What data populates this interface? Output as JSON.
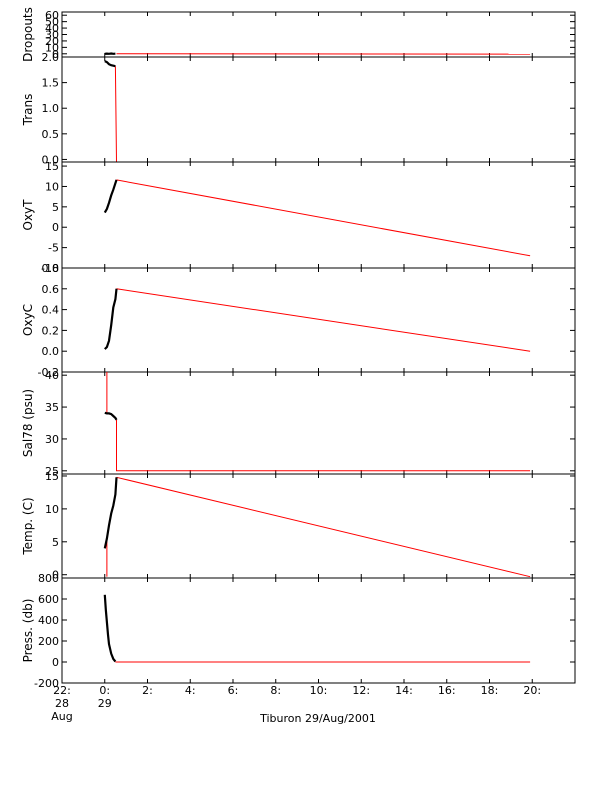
{
  "colors": {
    "axis": "#000000",
    "trace": "#000000",
    "line": "#ff0000",
    "background": "#ffffff"
  },
  "chart_data": {
    "type": "line",
    "caption": "Tiburon 29/Aug/2001",
    "x_ticks": [
      {
        "t": -2,
        "line1": "22:",
        "line2": "28",
        "line3": "Aug"
      },
      {
        "t": 0,
        "line1": "0:",
        "line2": "29",
        "line3": ""
      },
      {
        "t": 2,
        "line1": "2:",
        "line2": "",
        "line3": ""
      },
      {
        "t": 4,
        "line1": "4:",
        "line2": "",
        "line3": ""
      },
      {
        "t": 6,
        "line1": "6:",
        "line2": "",
        "line3": ""
      },
      {
        "t": 8,
        "line1": "8:",
        "line2": "",
        "line3": ""
      },
      {
        "t": 10,
        "line1": "10:",
        "line2": "",
        "line3": ""
      },
      {
        "t": 12,
        "line1": "12:",
        "line2": "",
        "line3": ""
      },
      {
        "t": 14,
        "line1": "14:",
        "line2": "",
        "line3": ""
      },
      {
        "t": 16,
        "line1": "16:",
        "line2": "",
        "line3": ""
      },
      {
        "t": 18,
        "line1": "18:",
        "line2": "",
        "line3": ""
      },
      {
        "t": 20,
        "line1": "20:",
        "line2": "",
        "line3": ""
      }
    ],
    "x_range": [
      -2,
      22
    ],
    "panels": [
      {
        "name": "dropouts",
        "ylabel": "Dropouts",
        "ylim": [
          -5,
          65
        ],
        "yticks": [
          0,
          10,
          20,
          30,
          40,
          50,
          60
        ],
        "measured": {
          "x": [
            0.0,
            0.1,
            0.2,
            0.3,
            0.4,
            0.5
          ],
          "y": [
            0,
            0.3,
            0,
            0.4,
            0,
            0.2
          ]
        },
        "line": {
          "x": [
            0.55,
            19.9
          ],
          "y": [
            0,
            -0.5
          ]
        },
        "spike": null
      },
      {
        "name": "trans",
        "ylabel": "Trans",
        "ylim": [
          -0.05,
          2.0
        ],
        "yticks": [
          0.0,
          0.5,
          1.0,
          1.5,
          2.0
        ],
        "measured": {
          "x": [
            0.0,
            0.1,
            0.2,
            0.3,
            0.4,
            0.5
          ],
          "y": [
            1.92,
            1.9,
            1.86,
            1.84,
            1.83,
            1.82
          ]
        },
        "line": {
          "x": [
            0.5,
            0.55,
            19.9
          ],
          "y": [
            1.82,
            -0.05,
            -0.05
          ]
        },
        "spike": null
      },
      {
        "name": "oxyt",
        "ylabel": "OxyT",
        "ylim": [
          -10,
          16
        ],
        "yticks": [
          -10,
          -5,
          0,
          5,
          10,
          15
        ],
        "measured": {
          "x": [
            0.0,
            0.1,
            0.2,
            0.3,
            0.4,
            0.5,
            0.55
          ],
          "y": [
            3.6,
            4.5,
            6.0,
            7.8,
            9.2,
            10.8,
            11.6
          ]
        },
        "line": {
          "x": [
            0.55,
            19.9
          ],
          "y": [
            11.6,
            -7.0
          ]
        },
        "spike": null
      },
      {
        "name": "oxyc",
        "ylabel": "OxyC",
        "ylim": [
          -0.2,
          0.8
        ],
        "yticks": [
          -0.2,
          0.0,
          0.2,
          0.4,
          0.6,
          0.8
        ],
        "measured": {
          "x": [
            0.0,
            0.1,
            0.2,
            0.3,
            0.4,
            0.5,
            0.55
          ],
          "y": [
            0.02,
            0.04,
            0.1,
            0.25,
            0.42,
            0.5,
            0.6
          ]
        },
        "line": {
          "x": [
            0.55,
            19.9
          ],
          "y": [
            0.6,
            0.0
          ]
        },
        "spike": null
      },
      {
        "name": "sal78",
        "ylabel": "Sal78 (psu)",
        "ylim": [
          24.5,
          40.5
        ],
        "yticks": [
          25,
          30,
          35,
          40
        ],
        "measured": {
          "x": [
            0.0,
            0.1,
            0.2,
            0.3,
            0.4,
            0.5,
            0.55
          ],
          "y": [
            34.1,
            34.0,
            34.0,
            33.9,
            33.6,
            33.3,
            33.0
          ]
        },
        "line": {
          "x": [
            0.55,
            0.55,
            19.9
          ],
          "y": [
            33.0,
            25.0,
            25.0
          ]
        },
        "spike": {
          "x": 0.1,
          "y1": 34.0,
          "y2": 40.5
        }
      },
      {
        "name": "temp",
        "ylabel": "Temp. (C)",
        "ylim": [
          -0.5,
          15.3
        ],
        "yticks": [
          0,
          5,
          10,
          15
        ],
        "measured": {
          "x": [
            0.0,
            0.1,
            0.2,
            0.3,
            0.4,
            0.5,
            0.55
          ],
          "y": [
            4.0,
            5.5,
            7.5,
            9.3,
            10.5,
            12.2,
            14.8
          ]
        },
        "line": {
          "x": [
            0.55,
            19.9
          ],
          "y": [
            14.8,
            -0.3
          ]
        },
        "spike": {
          "x": 0.1,
          "y1": 5.5,
          "y2": -0.3
        }
      },
      {
        "name": "press",
        "ylabel": "Press. (db)",
        "ylim": [
          -200,
          800
        ],
        "yticks": [
          -200,
          0,
          200,
          400,
          600,
          800
        ],
        "measured": {
          "x": [
            0.0,
            0.05,
            0.1,
            0.15,
            0.2,
            0.3,
            0.4,
            0.5
          ],
          "y": [
            640,
            500,
            380,
            260,
            170,
            80,
            30,
            5
          ]
        },
        "line": {
          "x": [
            0.5,
            19.9
          ],
          "y": [
            0,
            0
          ]
        },
        "spike": null
      }
    ]
  }
}
